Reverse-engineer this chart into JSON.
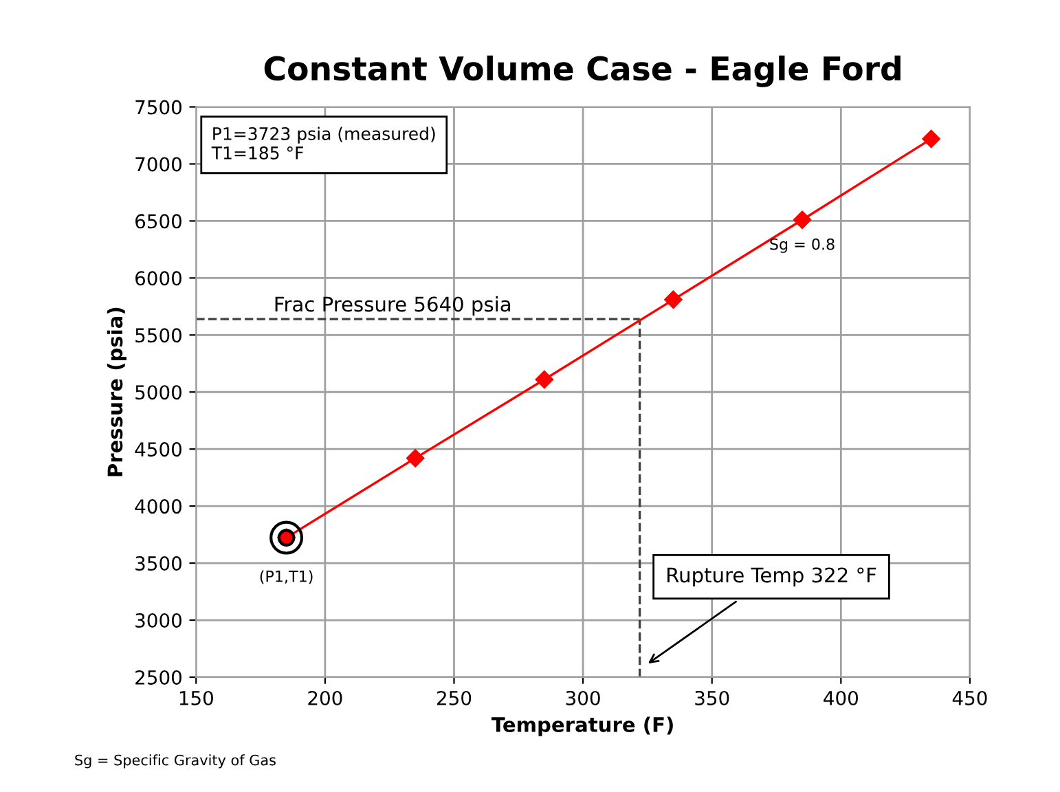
{
  "chart_data": {
    "type": "line",
    "title": "Constant Volume Case - Eagle Ford",
    "xlabel": "Temperature (F)",
    "ylabel": "Pressure (psia)",
    "xlim": [
      150,
      450
    ],
    "xticks": [
      150,
      200,
      250,
      300,
      350,
      400,
      450
    ],
    "ylim": [
      2500,
      7500
    ],
    "yticks": [
      2500,
      3000,
      3500,
      4000,
      4500,
      5000,
      5500,
      6000,
      6500,
      7000,
      7500
    ],
    "grid": true,
    "legend": false,
    "marker": "diamond",
    "line_style": "solid",
    "series": [
      {
        "color": "#ff0000",
        "x": [
          185,
          235,
          285,
          335,
          385,
          435
        ],
        "values": [
          3723,
          4420,
          5110,
          5810,
          6510,
          7220
        ]
      },
      {
        "type": "scatter",
        "color": "#ff0000",
        "x": [
          185
        ],
        "values": [
          3723
        ],
        "marker": "circle"
      }
    ],
    "ref_lines": [
      {
        "axis": "y",
        "value": 5640,
        "label": "Frac Pressure 5640 psia",
        "color": "#404040",
        "line_style": "dashed"
      },
      {
        "axis": "x",
        "value": 322,
        "label": "Rupture Temp 322 °F",
        "color": "#404040",
        "line_style": "dashed"
      }
    ],
    "annotations": [
      "P1=3723 psia (measured)\nT1=185 °F",
      {
        "text": "(P1,T1)",
        "x": 185,
        "y": 3723
      },
      {
        "text": "Sg = 0.8",
        "x": 385,
        "y": 6510
      },
      "Sg = Specific Gravity of Gas"
    ]
  }
}
